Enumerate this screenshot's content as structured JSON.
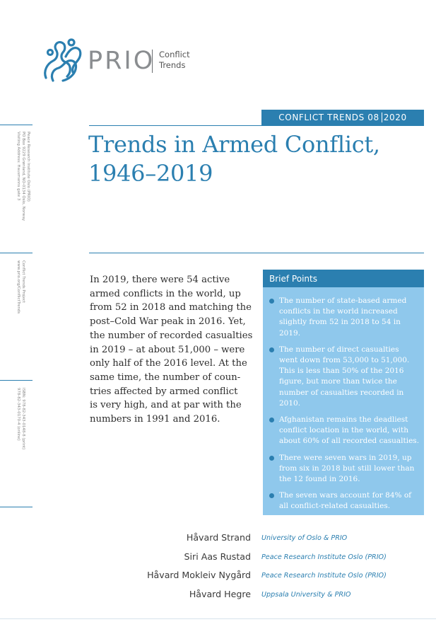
{
  "logo": {
    "wordmark": "PRIO",
    "subtitle_line1": "Conflict",
    "subtitle_line2": "Trends"
  },
  "sidebar": {
    "address": [
      "Peace Research Institute Oslo (PRIO)",
      "PO Box 9229 Grønland, NO-0134 Oslo, Norway",
      "Visiting Address: Hausmanns gate 3"
    ],
    "project": [
      "Conflict Trends Project",
      "www.prio.org/ConflictTrends"
    ],
    "isbn": [
      "ISBN: 978-82-343-0148-8 (print)",
      "978-82-343-0170-4 (online)"
    ]
  },
  "series": {
    "name": "CONFLICT TRENDS",
    "issue": "08",
    "year": "2020"
  },
  "title": {
    "line1": "Trends in Armed Conflict,",
    "line2": "1946–2019"
  },
  "intro_lines": [
    "In 2019, there were 54 active",
    "armed conflicts in the world, up",
    "from 52 in 2018 and matching the",
    "post–Cold War peak in 2016. Yet,",
    "the number of recorded casualties",
    "in 2019 – at about 51,000 – were",
    "only half of the 2016 level. At the",
    "same time, the number of coun-",
    "tries affected by armed conflict",
    "is very high, and at par with the",
    "numbers in 1991 and 2016."
  ],
  "brief_points": {
    "heading": "Brief Points",
    "items": [
      [
        "The number of state-based armed",
        "conflicts in the world increased",
        "slightly from 52 in 2018 to 54 in",
        "2019."
      ],
      [
        "The number of direct casualties",
        "went down from 53,000 to 51,000.",
        "This is less than 50% of the 2016",
        "figure, but more than twice the",
        "number of casualties recorded in",
        "2010."
      ],
      [
        "Afghanistan remains the deadliest",
        "conflict location in the world, with",
        "about 60% of all recorded casualties."
      ],
      [
        "There were seven wars in 2019, up",
        "from six in 2018 but still lower than",
        "the 12 found in 2016."
      ],
      [
        "The seven wars account for 84% of",
        "all conflict-related casualties."
      ]
    ]
  },
  "authors": [
    {
      "name": "Håvard Strand",
      "affiliation": "University of Oslo & PRIO"
    },
    {
      "name": "Siri Aas Rustad",
      "affiliation": "Peace Research Institute Oslo (PRIO)"
    },
    {
      "name": "Håvard Mokleiv Nygård",
      "affiliation": "Peace Research Institute Oslo (PRIO)"
    },
    {
      "name": "Håvard Hegre",
      "affiliation": "Uppsala University & PRIO"
    }
  ],
  "colors": {
    "accent": "#2b7fb0",
    "box": "#8fc8ec",
    "logo_gray": "#8a8d90"
  }
}
